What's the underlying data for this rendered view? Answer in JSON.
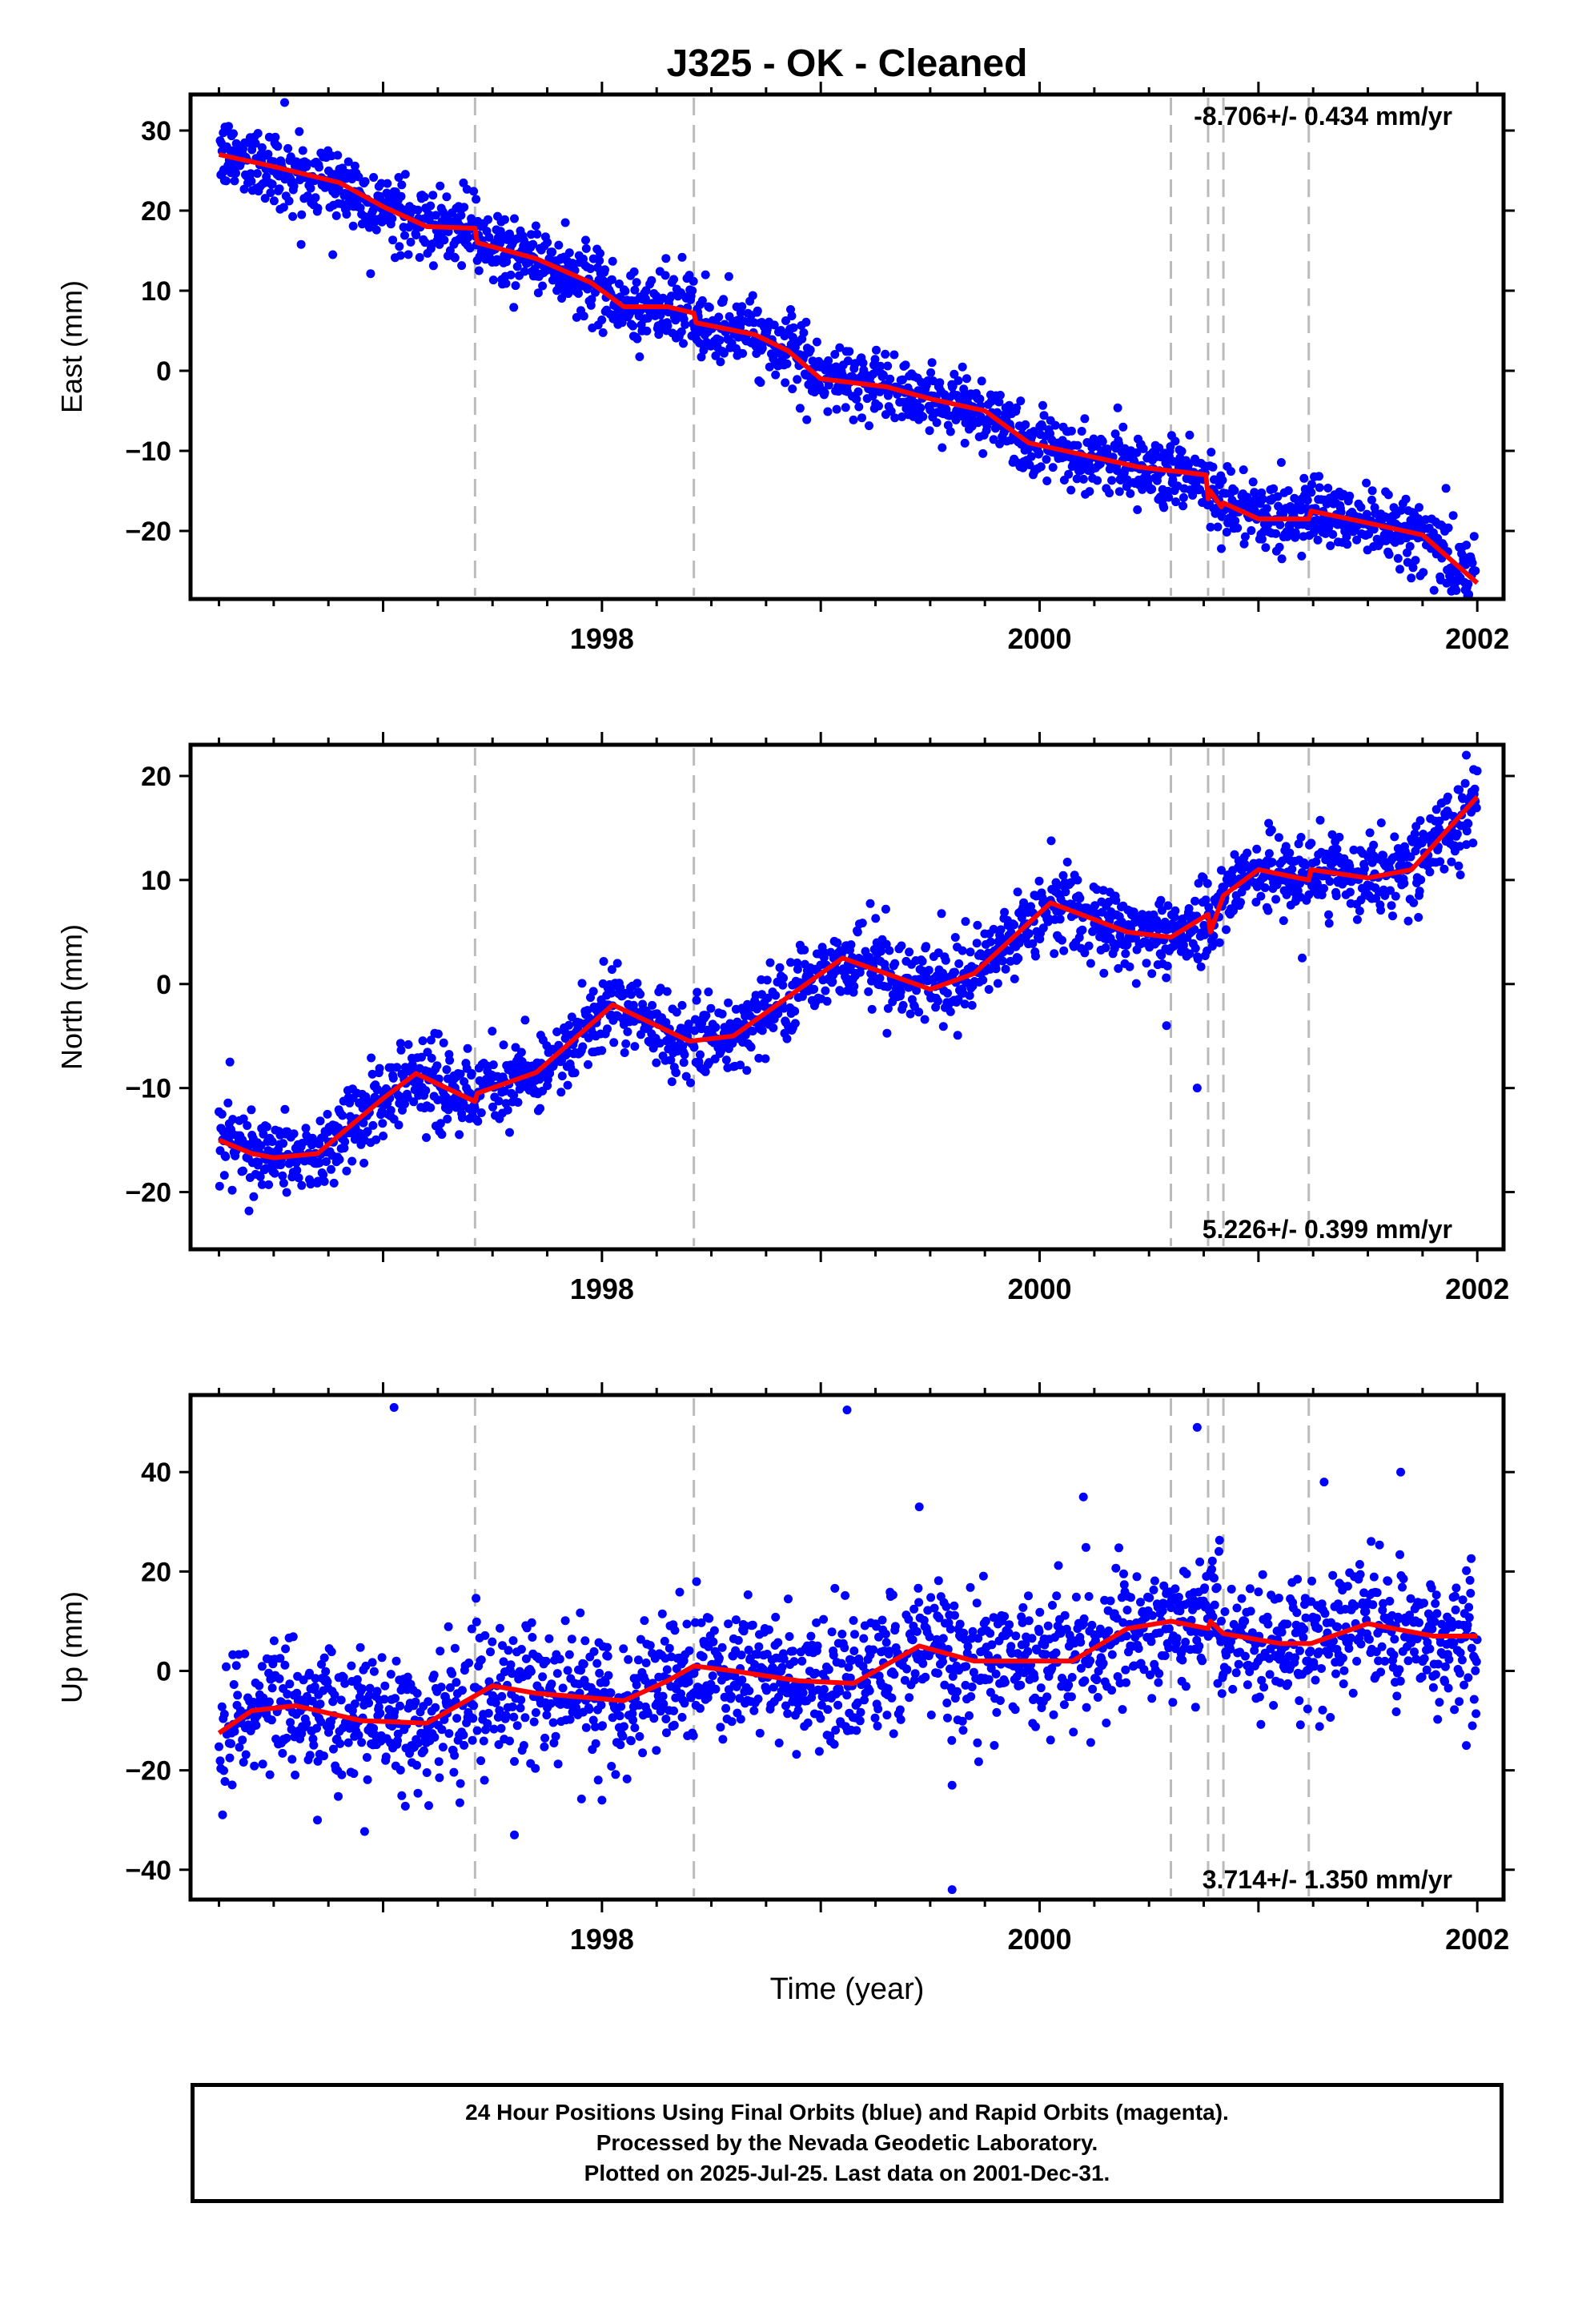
{
  "title": "J325  - OK - Cleaned",
  "footer": {
    "line1": "24 Hour Positions Using Final Orbits (blue) and Rapid Orbits (magenta).",
    "line2": "Processed by the Nevada Geodetic Laboratory.",
    "line3": "Plotted on 2025-Jul-25. Last data on 2001-Dec-31."
  },
  "colors": {
    "points": "#0000ff",
    "fit": "#ff0000",
    "breaks": "#bbbbbb",
    "axes": "#000000"
  },
  "chart_data": [
    {
      "type": "scatter",
      "component": "east",
      "ylabel": "East (mm)",
      "xlabel": "",
      "xlim": [
        1996.12,
        2002.12
      ],
      "ylim": [
        -28.5,
        34.5
      ],
      "yticks": [
        -20,
        -10,
        0,
        10,
        20,
        30
      ],
      "xticks": [
        1998,
        2000,
        2002
      ],
      "rate_label": "-8.706+/- 0.434 mm/yr",
      "rate_position": "top-right",
      "break_years": [
        1997.42,
        1998.42,
        2000.6,
        2000.77,
        2000.84,
        2001.23
      ],
      "fit": {
        "x": [
          1996.25,
          1996.5,
          1996.8,
          1997.0,
          1997.2,
          1997.42,
          1997.43,
          1997.7,
          1997.95,
          1998.1,
          1998.3,
          1998.42,
          1998.43,
          1998.7,
          1998.85,
          1999.0,
          1999.3,
          1999.5,
          1999.75,
          1999.95,
          2000.2,
          2000.45,
          2000.6,
          2000.61,
          2000.76,
          2000.77,
          2000.78,
          2000.83,
          2000.84,
          2001.0,
          2001.23,
          2001.24,
          2001.5,
          2001.75,
          2002.0
        ],
        "y": [
          27,
          25.5,
          23.5,
          20.5,
          18,
          17.8,
          16,
          14,
          11,
          8,
          8,
          7.2,
          6,
          4.5,
          2.5,
          -1,
          -2,
          -3.5,
          -5,
          -9,
          -10.5,
          -12,
          -12.5,
          -12.5,
          -13,
          -16,
          -15,
          -17,
          -16.5,
          -18.5,
          -18.5,
          -17.5,
          -19,
          -20.5,
          -26.5
        ]
      },
      "scatter_model": {
        "noise_sd": 2.2
      },
      "outliers": [
        {
          "x": 1996.77,
          "y": 14.5
        },
        {
          "x": 1996.55,
          "y": 33.5
        }
      ]
    },
    {
      "type": "scatter",
      "component": "north",
      "ylabel": "North (mm)",
      "xlabel": "",
      "xlim": [
        1996.12,
        2002.12
      ],
      "ylim": [
        -25.5,
        23
      ],
      "yticks": [
        -20,
        -10,
        0,
        10,
        20
      ],
      "xticks": [
        1998,
        2000,
        2002
      ],
      "rate_label": "5.226+/- 0.399 mm/yr",
      "rate_position": "bottom-right",
      "break_years": [
        1997.42,
        1998.42,
        2000.6,
        2000.77,
        2000.84,
        2001.23
      ],
      "fit": {
        "x": [
          1996.25,
          1996.4,
          1996.5,
          1996.7,
          1997.0,
          1997.15,
          1997.42,
          1997.43,
          1997.7,
          1998.05,
          1998.4,
          1998.6,
          1999.1,
          1999.5,
          1999.7,
          2000.05,
          2000.4,
          2000.6,
          2000.77,
          2000.78,
          2000.84,
          2001.0,
          2001.23,
          2001.24,
          2001.5,
          2001.7,
          2002.0
        ],
        "y": [
          -15,
          -16.3,
          -16.7,
          -16.3,
          -11,
          -8.6,
          -11.3,
          -10.5,
          -8.5,
          -2,
          -5.5,
          -5,
          2.5,
          -0.5,
          1,
          7.8,
          5,
          4.5,
          6.7,
          5,
          8.5,
          11,
          10,
          11,
          10.2,
          11,
          18
        ]
      },
      "scatter_model": {
        "noise_sd": 1.9
      },
      "outliers": [
        {
          "x": 2000.72,
          "y": -10
        },
        {
          "x": 2000.58,
          "y": -4
        },
        {
          "x": 2001.2,
          "y": 2.5
        },
        {
          "x": 1996.3,
          "y": -7.5
        },
        {
          "x": 2001.95,
          "y": 22
        }
      ]
    },
    {
      "type": "scatter",
      "component": "up",
      "ylabel": "Up (mm)",
      "xlabel": "Time (year)",
      "xlim": [
        1996.12,
        2002.12
      ],
      "ylim": [
        -46,
        55.5
      ],
      "yticks": [
        -40,
        -20,
        0,
        20,
        40
      ],
      "xticks": [
        1998,
        2000,
        2002
      ],
      "rate_label": "3.714+/- 1.350 mm/yr",
      "rate_position": "bottom-right",
      "break_years": [
        1997.42,
        1998.42,
        2000.6,
        2000.77,
        2000.84,
        2001.23
      ],
      "fit": {
        "x": [
          1996.25,
          1996.4,
          1996.6,
          1996.9,
          1997.2,
          1997.5,
          1997.7,
          1998.1,
          1998.3,
          1998.42,
          1998.6,
          1998.9,
          1999.15,
          1999.45,
          1999.7,
          2000.15,
          2000.4,
          2000.6,
          2000.77,
          2000.78,
          2000.84,
          2001.1,
          2001.23,
          2001.24,
          2001.5,
          2001.8,
          2002.0
        ],
        "y": [
          -12.5,
          -8,
          -7,
          -10,
          -10.5,
          -3,
          -4.5,
          -6,
          -2,
          1,
          0,
          -2,
          -2.5,
          5,
          2,
          2,
          8.5,
          10,
          8.5,
          10,
          7.5,
          5.5,
          5.5,
          5.5,
          9.5,
          7,
          7
        ]
      },
      "scatter_model": {
        "noise_sd": 6.5
      },
      "outliers": [
        {
          "x": 1997.05,
          "y": 53
        },
        {
          "x": 1999.12,
          "y": 52.5
        },
        {
          "x": 1999.6,
          "y": -44
        },
        {
          "x": 2000.72,
          "y": 49
        },
        {
          "x": 1997.6,
          "y": -33
        },
        {
          "x": 1996.7,
          "y": -30
        },
        {
          "x": 1999.6,
          "y": -23
        },
        {
          "x": 2001.65,
          "y": 40
        },
        {
          "x": 2000.2,
          "y": 35
        },
        {
          "x": 2001.3,
          "y": 38
        },
        {
          "x": 1998.0,
          "y": -26
        },
        {
          "x": 1999.45,
          "y": 33
        },
        {
          "x": 2001.95,
          "y": -15
        }
      ]
    }
  ]
}
